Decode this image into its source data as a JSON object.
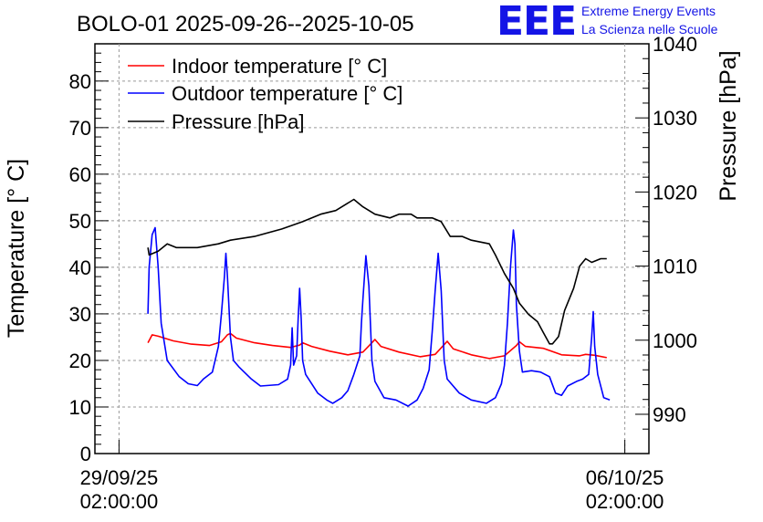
{
  "chart_data": {
    "type": "line",
    "title": "BOLO-01 2025-09-26--2025-10-05",
    "ylabel": "Temperature [° C]",
    "y2label": "Pressure [hPa]",
    "ylim": [
      0,
      88
    ],
    "y2lim": [
      984.7,
      1040
    ],
    "yticks": [
      "0",
      "10",
      "20",
      "30",
      "40",
      "50",
      "60",
      "70",
      "80"
    ],
    "y2ticks": [
      "990",
      "1000",
      "1010",
      "1020",
      "1030",
      "1040"
    ],
    "xticks": [
      {
        "date": "29/09/25",
        "time": "02:00:00",
        "t": 0
      },
      {
        "date": "06/10/25",
        "time": "02:00:00",
        "t": 168
      }
    ],
    "xlim": [
      -8,
      176
    ],
    "grid": true,
    "legend_position": "top-left",
    "series": [
      {
        "name": "Indoor temperature [° C]",
        "axis": "left",
        "color": "#ff0000",
        "points": [
          [
            9.6,
            23.8
          ],
          [
            11,
            25.5
          ],
          [
            13,
            25.2
          ],
          [
            18,
            24.2
          ],
          [
            24,
            23.5
          ],
          [
            30,
            23.2
          ],
          [
            34,
            24
          ],
          [
            36,
            25.5
          ],
          [
            37,
            25.8
          ],
          [
            39,
            24.8
          ],
          [
            45,
            23.8
          ],
          [
            51,
            23.2
          ],
          [
            57,
            22.8
          ],
          [
            60,
            23.3
          ],
          [
            61,
            23.8
          ],
          [
            64,
            23.0
          ],
          [
            70,
            22
          ],
          [
            76,
            21.2
          ],
          [
            81,
            21.8
          ],
          [
            84,
            23.8
          ],
          [
            85,
            24.5
          ],
          [
            87,
            23.0
          ],
          [
            93,
            21.8
          ],
          [
            100,
            20.8
          ],
          [
            105,
            21.3
          ],
          [
            108,
            23.4
          ],
          [
            109,
            24.1
          ],
          [
            111,
            22.5
          ],
          [
            117,
            21.2
          ],
          [
            123,
            20.4
          ],
          [
            128,
            21.0
          ],
          [
            132,
            23.2
          ],
          [
            133,
            24.0
          ],
          [
            135,
            23.0
          ],
          [
            141,
            22.6
          ],
          [
            147,
            21.2
          ],
          [
            153,
            21.0
          ],
          [
            155,
            21.3
          ],
          [
            158,
            21.1
          ],
          [
            162,
            20.6
          ]
        ]
      },
      {
        "name": "Outdoor temperature [° C]",
        "axis": "left",
        "color": "#0000ff",
        "points": [
          [
            9.6,
            30
          ],
          [
            10,
            40
          ],
          [
            11,
            47
          ],
          [
            12,
            48.5
          ],
          [
            13,
            40
          ],
          [
            14,
            28
          ],
          [
            16,
            20
          ],
          [
            20,
            16.5
          ],
          [
            23,
            15
          ],
          [
            26,
            14.6
          ],
          [
            28,
            16
          ],
          [
            31,
            17.5
          ],
          [
            33,
            23
          ],
          [
            34,
            30
          ],
          [
            35,
            38
          ],
          [
            35.5,
            43
          ],
          [
            36,
            38
          ],
          [
            37,
            25
          ],
          [
            38,
            20
          ],
          [
            40,
            18.5
          ],
          [
            44,
            16
          ],
          [
            47,
            14.5
          ],
          [
            53,
            14.8
          ],
          [
            56,
            16
          ],
          [
            57,
            19
          ],
          [
            57.5,
            27
          ],
          [
            58,
            19
          ],
          [
            59,
            21
          ],
          [
            59.5,
            29
          ],
          [
            60,
            35.5
          ],
          [
            60.5,
            29
          ],
          [
            61,
            20
          ],
          [
            62,
            17
          ],
          [
            66,
            13
          ],
          [
            69,
            11.5
          ],
          [
            71,
            10.8
          ],
          [
            74,
            12
          ],
          [
            76,
            13.5
          ],
          [
            78,
            17
          ],
          [
            80,
            21
          ],
          [
            80.5,
            28
          ],
          [
            81,
            33
          ],
          [
            82,
            42.5
          ],
          [
            83,
            36
          ],
          [
            84,
            20
          ],
          [
            85,
            15.5
          ],
          [
            88,
            12
          ],
          [
            92,
            11.5
          ],
          [
            96,
            10.2
          ],
          [
            99,
            11.5
          ],
          [
            101,
            14
          ],
          [
            103,
            18
          ],
          [
            104,
            26
          ],
          [
            105,
            35
          ],
          [
            106,
            43
          ],
          [
            107,
            35
          ],
          [
            108,
            20
          ],
          [
            109,
            16
          ],
          [
            113,
            13
          ],
          [
            117,
            11.5
          ],
          [
            122,
            10.8
          ],
          [
            125,
            12
          ],
          [
            127,
            15
          ],
          [
            128,
            19
          ],
          [
            129,
            28
          ],
          [
            130,
            40
          ],
          [
            131,
            48
          ],
          [
            131.5,
            45
          ],
          [
            132,
            32
          ],
          [
            133,
            22
          ],
          [
            134,
            17.5
          ],
          [
            137,
            17.8
          ],
          [
            140,
            17.5
          ],
          [
            143,
            16.5
          ],
          [
            145,
            13
          ],
          [
            147,
            12.5
          ],
          [
            149,
            14.5
          ],
          [
            152,
            15.5
          ],
          [
            154,
            16
          ],
          [
            156,
            17
          ],
          [
            157,
            25
          ],
          [
            157.5,
            30.5
          ],
          [
            158,
            23
          ],
          [
            159,
            17
          ],
          [
            161,
            12
          ],
          [
            163,
            11.5
          ]
        ]
      },
      {
        "name": "Pressure [hPa]",
        "axis": "right",
        "color": "#000000",
        "points": [
          [
            9.6,
            1012.5
          ],
          [
            10,
            1011.5
          ],
          [
            13,
            1012
          ],
          [
            16,
            1013
          ],
          [
            19,
            1012.5
          ],
          [
            26,
            1012.5
          ],
          [
            33,
            1013
          ],
          [
            37,
            1013.5
          ],
          [
            45,
            1014
          ],
          [
            54,
            1015
          ],
          [
            61,
            1016
          ],
          [
            67,
            1017
          ],
          [
            72,
            1017.5
          ],
          [
            76,
            1018.5
          ],
          [
            78,
            1019
          ],
          [
            81,
            1018
          ],
          [
            85,
            1017
          ],
          [
            90,
            1016.5
          ],
          [
            93,
            1017
          ],
          [
            97,
            1017
          ],
          [
            99,
            1016.5
          ],
          [
            104,
            1016.5
          ],
          [
            107,
            1016
          ],
          [
            110,
            1014
          ],
          [
            114,
            1014
          ],
          [
            117,
            1013.5
          ],
          [
            123,
            1013
          ],
          [
            125,
            1011.5
          ],
          [
            128,
            1009
          ],
          [
            131,
            1007
          ],
          [
            133,
            1005
          ],
          [
            136,
            1003.5
          ],
          [
            139,
            1002.5
          ],
          [
            141,
            1001
          ],
          [
            143,
            999.5
          ],
          [
            144,
            999.5
          ],
          [
            146,
            1000.5
          ],
          [
            148,
            1004
          ],
          [
            151,
            1007
          ],
          [
            153,
            1010
          ],
          [
            155,
            1011
          ],
          [
            157,
            1010.5
          ],
          [
            160,
            1011
          ],
          [
            162,
            1011
          ]
        ]
      }
    ]
  },
  "branding": {
    "logo": "EEE",
    "line1": "Extreme Energy Events",
    "line2": "La Scienza nelle Scuole"
  }
}
